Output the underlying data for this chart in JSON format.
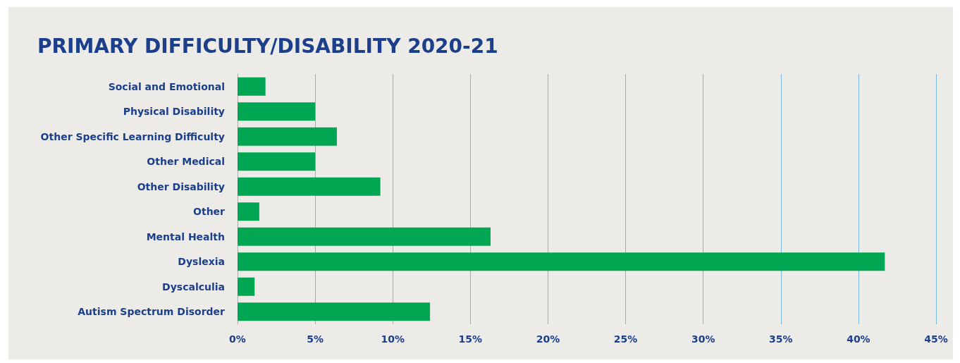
{
  "chart_data": {
    "type": "bar",
    "orientation": "horizontal",
    "title": "PRIMARY DIFFICULTY/DISABILITY 2020-21",
    "categories": [
      "Social and Emotional",
      "Physical Disability",
      "Other Specific Learning Difficulty",
      "Other Medical",
      "Other Disability",
      "Other",
      "Mental Health",
      "Dyslexia",
      "Dyscalculia",
      "Autism Spectrum Disorder"
    ],
    "values": [
      1.8,
      5.0,
      6.4,
      5.0,
      9.2,
      1.4,
      16.3,
      41.7,
      1.1,
      12.4
    ],
    "color": "#00a651",
    "xlim": [
      0,
      45
    ],
    "xticks": [
      {
        "value": 0,
        "label": "0%"
      },
      {
        "value": 5,
        "label": "5%"
      },
      {
        "value": 10,
        "label": "10%"
      },
      {
        "value": 15,
        "label": "15%"
      },
      {
        "value": 20,
        "label": "20%"
      },
      {
        "value": 25,
        "label": "25%"
      },
      {
        "value": 30,
        "label": "30%"
      },
      {
        "value": 35,
        "label": "35%"
      },
      {
        "value": 40,
        "label": "40%"
      },
      {
        "value": 45,
        "label": "45%"
      }
    ],
    "grid": "x"
  }
}
